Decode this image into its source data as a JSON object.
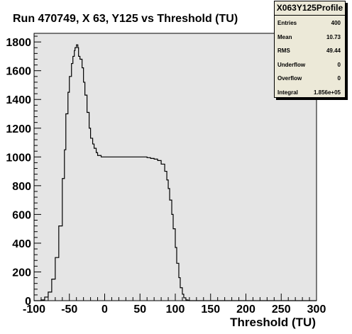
{
  "colors": {
    "frame_bg": "#e5e5e5",
    "line": "#000000",
    "stats_bg": "#ece9d8"
  },
  "stats": {
    "title": "X063Y125Profile",
    "rows": [
      {
        "label": "Entries",
        "value": "400"
      },
      {
        "label": "Mean",
        "value": "10.73"
      },
      {
        "label": "RMS",
        "value": "49.44"
      },
      {
        "label": "Underflow",
        "value": "0"
      },
      {
        "label": "Overflow",
        "value": "0"
      },
      {
        "label": "Integral",
        "value": "1.856e+05"
      }
    ]
  },
  "chart_data": {
    "type": "line",
    "style": "step-histogram",
    "title": "Run 470749, X 63, Y125 vs Threshold (TU)",
    "xlabel": "Threshold (TU)",
    "ylabel": "",
    "xlim": [
      -100,
      300
    ],
    "ylim": [
      0,
      1860
    ],
    "xticks": [
      -100,
      -50,
      0,
      50,
      100,
      150,
      200,
      250,
      300
    ],
    "yticks": [
      0,
      200,
      400,
      600,
      800,
      1000,
      1200,
      1400,
      1600,
      1800
    ],
    "grid": false,
    "legend": "none",
    "series": [
      {
        "x": [
          -100,
          -95,
          -90,
          -85,
          -80,
          -75,
          -70,
          -65,
          -60,
          -57,
          -55,
          -52,
          -50,
          -47,
          -45,
          -43,
          -42,
          -40,
          -38,
          -37,
          -35,
          -32,
          -30,
          -28,
          -25,
          -22,
          -20,
          -17,
          -15,
          -12,
          -10,
          -5,
          0,
          10,
          20,
          30,
          40,
          50,
          60,
          65,
          70,
          75,
          80,
          85,
          88,
          90,
          92,
          95,
          97,
          100,
          102,
          105,
          107,
          110,
          112,
          115,
          118,
          120,
          125,
          130,
          300
        ],
        "y": [
          0,
          0,
          5,
          25,
          60,
          150,
          300,
          520,
          850,
          1050,
          1300,
          1450,
          1560,
          1650,
          1700,
          1740,
          1760,
          1780,
          1760,
          1700,
          1680,
          1620,
          1520,
          1430,
          1310,
          1200,
          1130,
          1090,
          1060,
          1030,
          1010,
          1000,
          1000,
          1000,
          1000,
          1000,
          1000,
          1000,
          995,
          990,
          985,
          975,
          950,
          900,
          840,
          780,
          700,
          600,
          500,
          370,
          260,
          160,
          90,
          45,
          20,
          5,
          2,
          0,
          0,
          0,
          0
        ]
      }
    ]
  }
}
